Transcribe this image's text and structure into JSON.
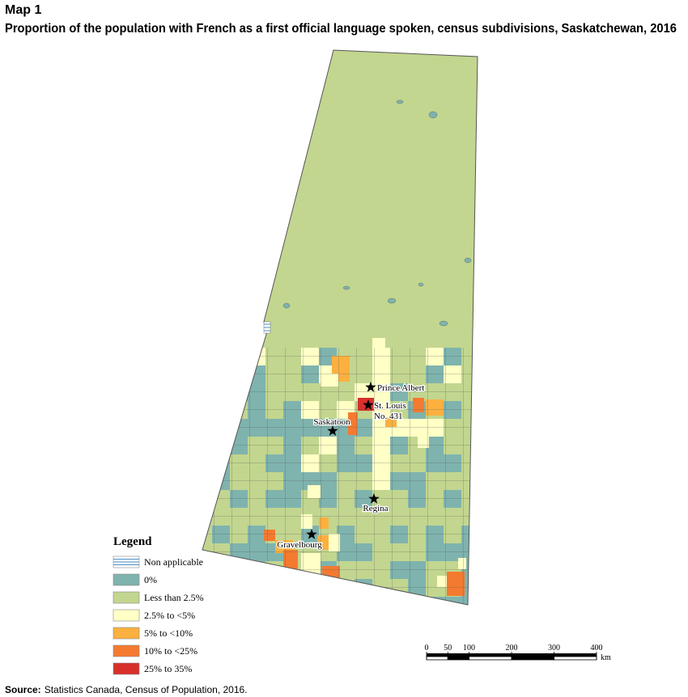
{
  "header": {
    "map_label": "Map 1",
    "title": "Proportion of the population with French as a first official language spoken, census subdivisions, Saskatchewan, 2016"
  },
  "places": [
    {
      "lines": [
        "Prince Albert"
      ]
    },
    {
      "lines": [
        "St. Louis",
        "No. 431"
      ]
    },
    {
      "lines": [
        "Saskatoon"
      ]
    },
    {
      "lines": [
        "Regina"
      ]
    },
    {
      "lines": [
        "Gravelbourg"
      ]
    }
  ],
  "legend": {
    "title": "Legend",
    "items": [
      {
        "label": "Non applicable",
        "color": "#4a8cc4"
      },
      {
        "label": "0%",
        "color": "#7fb3ae"
      },
      {
        "label": "Less than 2.5%",
        "color": "#c2d68f"
      },
      {
        "label": "2.5% to <5%",
        "color": "#ffffc6"
      },
      {
        "label": "5% to <10%",
        "color": "#fbb040"
      },
      {
        "label": "10% to <25%",
        "color": "#f47a30"
      },
      {
        "label": "25% to 35%",
        "color": "#d7302a"
      }
    ]
  },
  "scale_bar": {
    "ticks": [
      0,
      50,
      100,
      200,
      300,
      400
    ],
    "unit": "km"
  },
  "source": {
    "label": "Source:",
    "text": "Statistics Canada, Census of Population, 2016."
  }
}
